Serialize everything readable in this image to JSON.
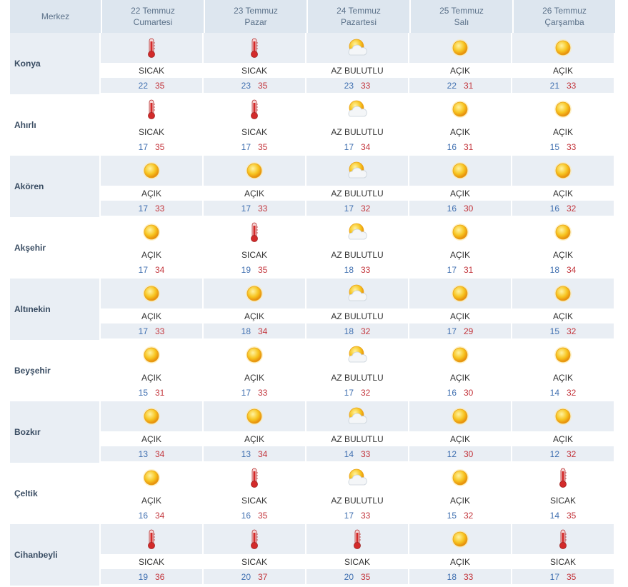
{
  "header": {
    "center_label": "Merkez",
    "days": [
      {
        "date": "22 Temmuz",
        "weekday": "Cumartesi"
      },
      {
        "date": "23 Temmuz",
        "weekday": "Pazar"
      },
      {
        "date": "24 Temmuz",
        "weekday": "Pazartesi"
      },
      {
        "date": "25 Temmuz",
        "weekday": "Salı"
      },
      {
        "date": "26 Temmuz",
        "weekday": "Çarşamba"
      }
    ]
  },
  "colors": {
    "low": "#3f6fb0",
    "high": "#c3363d",
    "shade": "#e9eef4"
  },
  "rows": [
    {
      "city": "Konya",
      "days": [
        {
          "icon": "thermometer-icon",
          "cond": "SICAK",
          "low": "22",
          "high": "35"
        },
        {
          "icon": "thermometer-icon",
          "cond": "SICAK",
          "low": "23",
          "high": "35"
        },
        {
          "icon": "partly-cloudy-icon",
          "cond": "AZ BULUTLU",
          "low": "23",
          "high": "33"
        },
        {
          "icon": "sun-icon",
          "cond": "AÇIK",
          "low": "22",
          "high": "31"
        },
        {
          "icon": "sun-icon",
          "cond": "AÇIK",
          "low": "21",
          "high": "33"
        }
      ]
    },
    {
      "city": "Ahırlı",
      "days": [
        {
          "icon": "thermometer-icon",
          "cond": "SICAK",
          "low": "17",
          "high": "35"
        },
        {
          "icon": "thermometer-icon",
          "cond": "SICAK",
          "low": "17",
          "high": "35"
        },
        {
          "icon": "partly-cloudy-icon",
          "cond": "AZ BULUTLU",
          "low": "17",
          "high": "34"
        },
        {
          "icon": "sun-icon",
          "cond": "AÇIK",
          "low": "16",
          "high": "31"
        },
        {
          "icon": "sun-icon",
          "cond": "AÇIK",
          "low": "15",
          "high": "33"
        }
      ]
    },
    {
      "city": "Akören",
      "days": [
        {
          "icon": "sun-icon",
          "cond": "AÇIK",
          "low": "17",
          "high": "33"
        },
        {
          "icon": "sun-icon",
          "cond": "AÇIK",
          "low": "17",
          "high": "33"
        },
        {
          "icon": "partly-cloudy-icon",
          "cond": "AZ BULUTLU",
          "low": "17",
          "high": "32"
        },
        {
          "icon": "sun-icon",
          "cond": "AÇIK",
          "low": "16",
          "high": "30"
        },
        {
          "icon": "sun-icon",
          "cond": "AÇIK",
          "low": "16",
          "high": "32"
        }
      ]
    },
    {
      "city": "Akşehir",
      "days": [
        {
          "icon": "sun-icon",
          "cond": "AÇIK",
          "low": "17",
          "high": "34"
        },
        {
          "icon": "thermometer-icon",
          "cond": "SICAK",
          "low": "19",
          "high": "35"
        },
        {
          "icon": "partly-cloudy-icon",
          "cond": "AZ BULUTLU",
          "low": "18",
          "high": "33"
        },
        {
          "icon": "sun-icon",
          "cond": "AÇIK",
          "low": "17",
          "high": "31"
        },
        {
          "icon": "sun-icon",
          "cond": "AÇIK",
          "low": "18",
          "high": "34"
        }
      ]
    },
    {
      "city": "Altınekin",
      "days": [
        {
          "icon": "sun-icon",
          "cond": "AÇIK",
          "low": "17",
          "high": "33"
        },
        {
          "icon": "sun-icon",
          "cond": "AÇIK",
          "low": "18",
          "high": "34"
        },
        {
          "icon": "partly-cloudy-icon",
          "cond": "AZ BULUTLU",
          "low": "18",
          "high": "32"
        },
        {
          "icon": "sun-icon",
          "cond": "AÇIK",
          "low": "17",
          "high": "29"
        },
        {
          "icon": "sun-icon",
          "cond": "AÇIK",
          "low": "15",
          "high": "32"
        }
      ]
    },
    {
      "city": "Beyşehir",
      "days": [
        {
          "icon": "sun-icon",
          "cond": "AÇIK",
          "low": "15",
          "high": "31"
        },
        {
          "icon": "sun-icon",
          "cond": "AÇIK",
          "low": "17",
          "high": "33"
        },
        {
          "icon": "partly-cloudy-icon",
          "cond": "AZ BULUTLU",
          "low": "17",
          "high": "32"
        },
        {
          "icon": "sun-icon",
          "cond": "AÇIK",
          "low": "16",
          "high": "30"
        },
        {
          "icon": "sun-icon",
          "cond": "AÇIK",
          "low": "14",
          "high": "32"
        }
      ]
    },
    {
      "city": "Bozkır",
      "days": [
        {
          "icon": "sun-icon",
          "cond": "AÇIK",
          "low": "13",
          "high": "34"
        },
        {
          "icon": "sun-icon",
          "cond": "AÇIK",
          "low": "13",
          "high": "34"
        },
        {
          "icon": "partly-cloudy-icon",
          "cond": "AZ BULUTLU",
          "low": "14",
          "high": "33"
        },
        {
          "icon": "sun-icon",
          "cond": "AÇIK",
          "low": "12",
          "high": "30"
        },
        {
          "icon": "sun-icon",
          "cond": "AÇIK",
          "low": "12",
          "high": "32"
        }
      ]
    },
    {
      "city": "Çeltik",
      "days": [
        {
          "icon": "sun-icon",
          "cond": "AÇIK",
          "low": "16",
          "high": "34"
        },
        {
          "icon": "thermometer-icon",
          "cond": "SICAK",
          "low": "16",
          "high": "35"
        },
        {
          "icon": "partly-cloudy-icon",
          "cond": "AZ BULUTLU",
          "low": "17",
          "high": "33"
        },
        {
          "icon": "sun-icon",
          "cond": "AÇIK",
          "low": "15",
          "high": "32"
        },
        {
          "icon": "thermometer-icon",
          "cond": "SICAK",
          "low": "14",
          "high": "35"
        }
      ]
    },
    {
      "city": "Cihanbeyli",
      "days": [
        {
          "icon": "thermometer-icon",
          "cond": "SICAK",
          "low": "19",
          "high": "36"
        },
        {
          "icon": "thermometer-icon",
          "cond": "SICAK",
          "low": "20",
          "high": "37"
        },
        {
          "icon": "thermometer-icon",
          "cond": "SICAK",
          "low": "20",
          "high": "35"
        },
        {
          "icon": "sun-icon",
          "cond": "AÇIK",
          "low": "18",
          "high": "33"
        },
        {
          "icon": "thermometer-icon",
          "cond": "SICAK",
          "low": "17",
          "high": "35"
        }
      ]
    }
  ]
}
